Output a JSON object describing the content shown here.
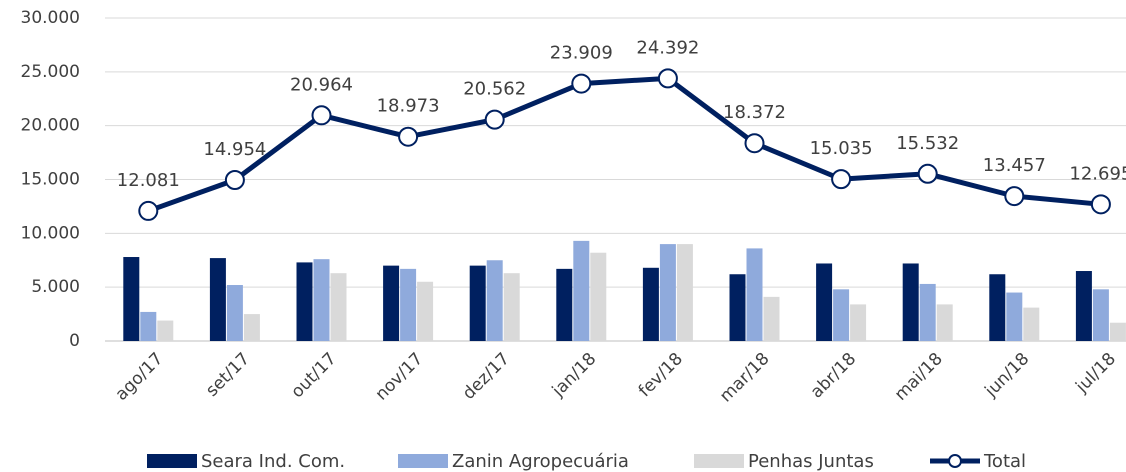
{
  "chart_data": {
    "type": "bar",
    "categories": [
      "ago/17",
      "set/17",
      "out/17",
      "nov/17",
      "dez/17",
      "jan/18",
      "fev/18",
      "mar/18",
      "abr/18",
      "mai/18",
      "jun/18",
      "jul/18"
    ],
    "series": [
      {
        "name": "Seara Ind. Com.",
        "color": "#002060",
        "values": [
          7800,
          7700,
          7300,
          7000,
          7000,
          6700,
          6800,
          6200,
          7200,
          7200,
          6200,
          6500
        ]
      },
      {
        "name": "Zanin Agropecuária",
        "color": "#8faadc",
        "values": [
          2700,
          5200,
          7600,
          6700,
          7500,
          9300,
          9000,
          8600,
          4800,
          5300,
          4500,
          4800
        ]
      },
      {
        "name": "Penhas Juntas",
        "color": "#d9d9d9",
        "values": [
          1900,
          2500,
          6300,
          5500,
          6300,
          8200,
          9000,
          4100,
          3400,
          3400,
          3100,
          1700
        ]
      },
      {
        "name": "Total",
        "color": "#002060",
        "type": "line",
        "values": [
          12081,
          14954,
          20964,
          18973,
          20562,
          23909,
          24392,
          18372,
          15035,
          15532,
          13457,
          12695
        ],
        "value_labels": [
          "12.081",
          "14.954",
          "20.964",
          "18.973",
          "20.562",
          "23.909",
          "24.392",
          "18.372",
          "15.035",
          "15.532",
          "13.457",
          "12.695"
        ]
      }
    ],
    "ylim": [
      0,
      30000
    ],
    "yticks": [
      0,
      {
        "value": 5000,
        "label": "5.000"
      },
      {
        "value": 10000,
        "label": "10.000"
      },
      {
        "value": 15000,
        "label": "15.000"
      },
      {
        "value": 20000,
        "label": "20.000"
      },
      {
        "value": 25000,
        "label": "25.000"
      },
      {
        "value": 30000,
        "label": "30.000"
      }
    ],
    "grid": true,
    "legend": "bottom"
  }
}
